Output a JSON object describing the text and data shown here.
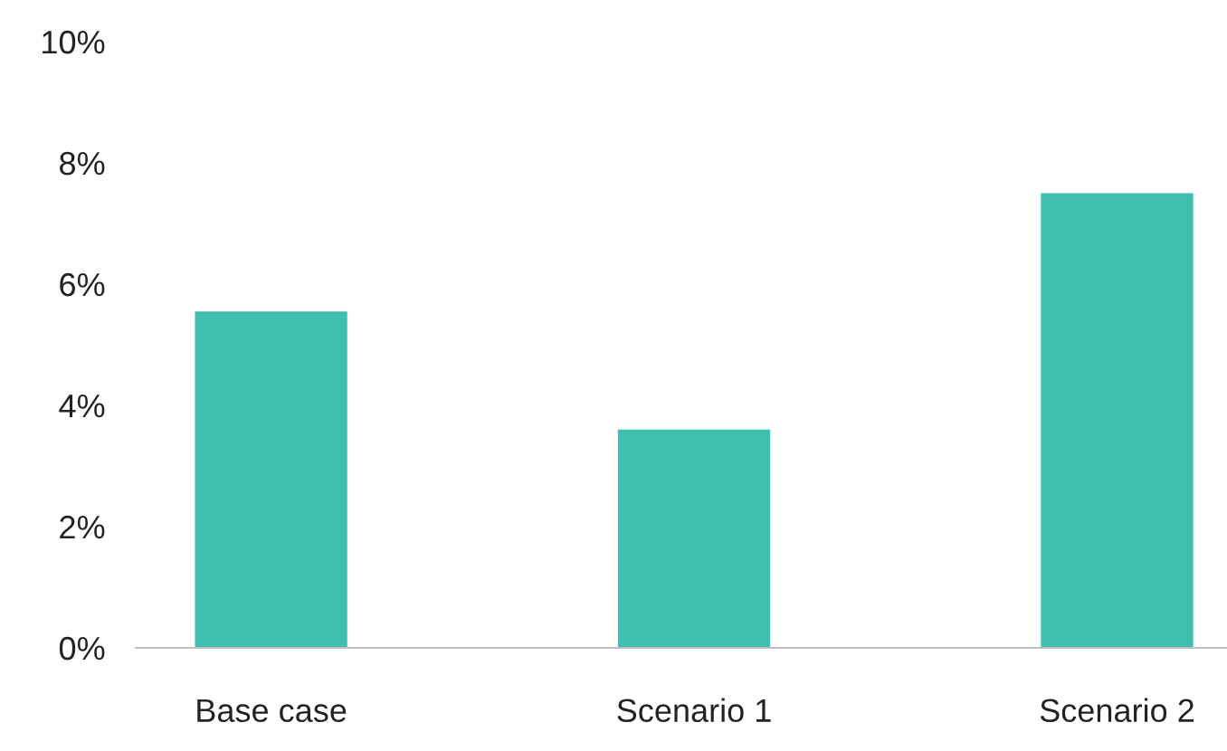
{
  "chart_data": {
    "type": "bar",
    "categories": [
      "Base case",
      "Scenario 1",
      "Scenario 2"
    ],
    "values": [
      5.55,
      3.6,
      7.5
    ],
    "color": "#40bfb1",
    "ylim": [
      0,
      10
    ],
    "yticks": [
      {
        "value": 0,
        "label": "0%"
      },
      {
        "value": 2,
        "label": "2%"
      },
      {
        "value": 4,
        "label": "4%"
      },
      {
        "value": 6,
        "label": "6%"
      },
      {
        "value": 8,
        "label": "8%"
      },
      {
        "value": 10,
        "label": "10%"
      }
    ],
    "grid": false,
    "legend": false
  }
}
